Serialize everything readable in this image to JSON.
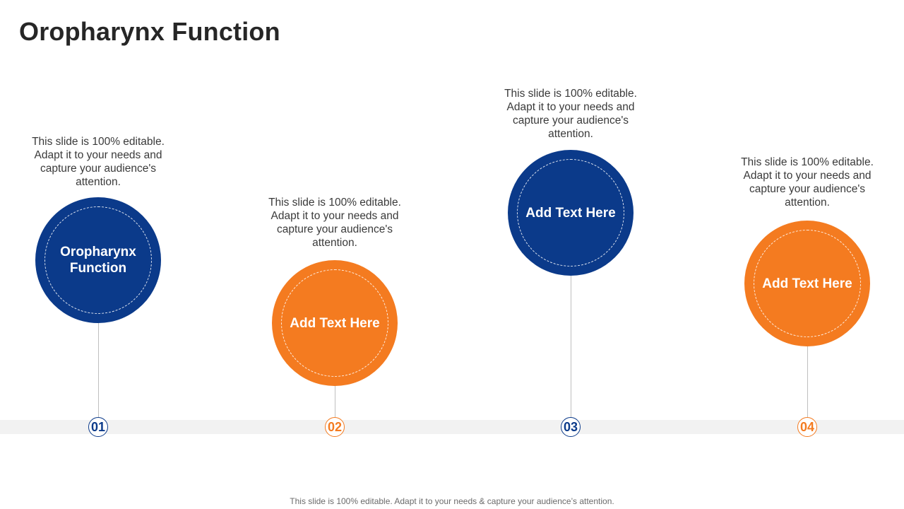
{
  "slide": {
    "title": "Oropharynx Function",
    "footer": "This slide is 100% editable. Adapt it to your needs & capture your audience’s attention."
  },
  "colors": {
    "navy": "#0b3a8a",
    "orange": "#f47b20",
    "band": "#f2f2f2"
  },
  "steps": [
    {
      "number": "01",
      "label": "Oropharynx Function",
      "description": "This slide is 100% editable. Adapt it to your needs and capture your audience's attention.",
      "color": "#0b3a8a"
    },
    {
      "number": "02",
      "label": "Add Text Here",
      "description": "This slide is 100% editable. Adapt it to your needs and capture your audience's attention.",
      "color": "#f47b20"
    },
    {
      "number": "03",
      "label": "Add Text Here",
      "description": "This slide is 100% editable. Adapt it to your needs and capture your audience's attention.",
      "color": "#0b3a8a"
    },
    {
      "number": "04",
      "label": "Add Text Here",
      "description": "This slide is 100% editable. Adapt it to your needs and capture your audience's attention.",
      "color": "#f47b20"
    }
  ]
}
